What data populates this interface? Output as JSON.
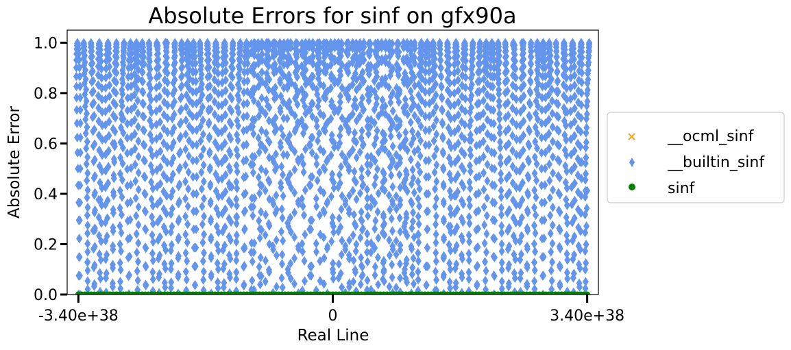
{
  "chart_data": {
    "type": "scatter",
    "title": "Absolute Errors for sinf on gfx90a",
    "xlabel": "Real Line",
    "ylabel": "Absolute Error",
    "xlim": [
      -3.55e+38,
      3.55e+38
    ],
    "ylim": [
      0,
      1.05
    ],
    "x_ticks": [
      {
        "value": -3.4e+38,
        "label": "-3.40e+38"
      },
      {
        "value": 0,
        "label": "0"
      },
      {
        "value": 3.4e+38,
        "label": "3.40e+38"
      }
    ],
    "y_ticks": [
      {
        "value": 0.0,
        "label": "0.0"
      },
      {
        "value": 0.2,
        "label": "0.2"
      },
      {
        "value": 0.4,
        "label": "0.4"
      },
      {
        "value": 0.6,
        "label": "0.6"
      },
      {
        "value": 0.8,
        "label": "0.8"
      },
      {
        "value": 1.0,
        "label": "1.0"
      }
    ],
    "grid": false,
    "legend_position": "outside-right",
    "series": [
      {
        "name": "__ocml_sinf",
        "marker": "x",
        "color": "#FFA500",
        "x_range": [
          -3.4e+38,
          3.4e+38
        ],
        "y": [
          0
        ]
      },
      {
        "name": "__builtin_sinf",
        "marker": "diamond",
        "color": "#6495ED",
        "x_range": [
          -3.4e+38,
          3.4e+38
        ],
        "y_range": [
          0,
          1.0
        ],
        "description_note": "dense absolute errors spanning 0 to 1 across the full float range, periodic columns"
      },
      {
        "name": "sinf",
        "marker": "circle",
        "color": "#008000",
        "x_range": [
          -3.4e+38,
          3.4e+38
        ],
        "y": [
          0
        ]
      }
    ]
  }
}
